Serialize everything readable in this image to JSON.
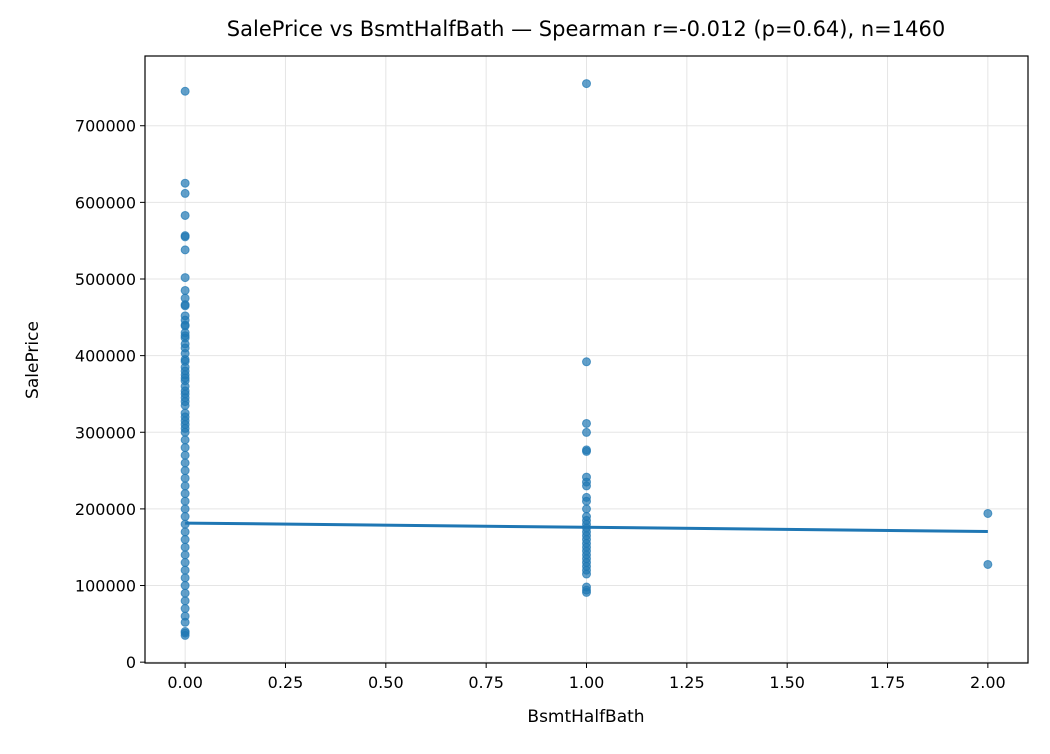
{
  "chart_data": {
    "type": "scatter",
    "title": "SalePrice vs BsmtHalfBath — Spearman r=-0.012 (p=0.64), n=1460",
    "xlabel": "BsmtHalfBath",
    "ylabel": "SalePrice",
    "xlim": [
      -0.1,
      2.1
    ],
    "ylim": [
      -1100,
      791000
    ],
    "xticks": [
      {
        "value": 0,
        "label": "0.00"
      },
      {
        "value": 0.25,
        "label": "0.25"
      },
      {
        "value": 0.5,
        "label": "0.50"
      },
      {
        "value": 0.75,
        "label": "0.75"
      },
      {
        "value": 1,
        "label": "1.00"
      },
      {
        "value": 1.25,
        "label": "1.25"
      },
      {
        "value": 1.5,
        "label": "1.50"
      },
      {
        "value": 1.75,
        "label": "1.75"
      },
      {
        "value": 2,
        "label": "2.00"
      }
    ],
    "yticks": [
      0,
      100000,
      200000,
      300000,
      400000,
      500000,
      600000,
      700000
    ],
    "grid": true,
    "series": [
      {
        "color": "#1f77b4",
        "x": [
          0,
          0,
          0,
          0,
          0,
          0,
          0,
          0,
          0,
          0,
          0,
          0,
          0,
          0,
          0,
          0,
          0,
          0,
          0,
          0,
          0,
          0,
          0,
          0,
          0,
          0,
          0,
          0,
          0,
          0,
          0,
          0,
          0,
          0,
          0,
          0,
          0,
          0,
          0,
          0,
          0,
          0,
          0,
          0,
          0,
          0,
          0,
          0,
          0,
          0,
          0,
          0,
          0,
          0,
          0,
          0,
          0,
          0,
          0,
          0,
          0,
          0,
          0,
          0,
          0,
          0,
          0,
          0,
          0,
          1,
          1,
          1,
          1,
          1,
          1,
          1,
          1,
          1,
          1,
          1,
          1,
          1,
          1,
          1,
          1,
          1,
          1,
          1,
          1,
          1,
          1,
          1,
          1,
          1,
          1,
          1,
          1,
          1,
          1,
          1,
          2,
          2
        ],
        "values": [
          745000,
          625000,
          611657,
          582933,
          556581,
          555000,
          538000,
          501837,
          485000,
          475000,
          466500,
          465000,
          451950,
          446261,
          440000,
          438780,
          430000,
          426000,
          423000,
          415298,
          410000,
          402861,
          395000,
          392500,
          385000,
          380000,
          375000,
          370878,
          367294,
          360000,
          354000,
          350000,
          345000,
          340000,
          335000,
          325000,
          320000,
          315000,
          310000,
          305000,
          300000,
          290000,
          280000,
          270000,
          260000,
          250000,
          240000,
          230000,
          220000,
          210000,
          200000,
          190000,
          180000,
          170000,
          160000,
          150000,
          140000,
          130000,
          120000,
          110000,
          100000,
          90000,
          80000,
          70000,
          60000,
          52000,
          40000,
          37900,
          34900,
          755000,
          392000,
          311500,
          299800,
          277000,
          275000,
          241500,
          235000,
          230000,
          215000,
          210000,
          200000,
          190000,
          185000,
          180000,
          175000,
          170000,
          165000,
          160000,
          155000,
          150000,
          145000,
          140000,
          135000,
          130000,
          125000,
          120000,
          115000,
          98000,
          94000,
          91000,
          194000,
          127500
        ]
      }
    ],
    "fit_line": {
      "color": "#1f77b4",
      "x": [
        0,
        2
      ],
      "values": [
        181500,
        170500
      ]
    }
  }
}
